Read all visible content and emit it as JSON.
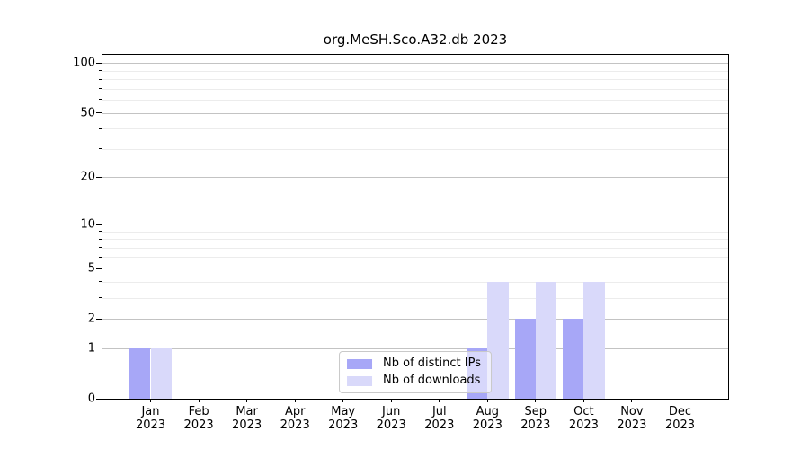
{
  "chart_data": {
    "type": "bar",
    "title": "org.MeSH.Sco.A32.db 2023",
    "categories": [
      {
        "month": "Jan",
        "year": "2023"
      },
      {
        "month": "Feb",
        "year": "2023"
      },
      {
        "month": "Mar",
        "year": "2023"
      },
      {
        "month": "Apr",
        "year": "2023"
      },
      {
        "month": "May",
        "year": "2023"
      },
      {
        "month": "Jun",
        "year": "2023"
      },
      {
        "month": "Jul",
        "year": "2023"
      },
      {
        "month": "Aug",
        "year": "2023"
      },
      {
        "month": "Sep",
        "year": "2023"
      },
      {
        "month": "Oct",
        "year": "2023"
      },
      {
        "month": "Nov",
        "year": "2023"
      },
      {
        "month": "Dec",
        "year": "2023"
      }
    ],
    "series": [
      {
        "name": "Nb of distinct IPs",
        "color": "#a7a7f7",
        "values": [
          1,
          0,
          0,
          0,
          0,
          0,
          0,
          1,
          2,
          2,
          0,
          0
        ]
      },
      {
        "name": "Nb of downloads",
        "color": "#d9d9fa",
        "values": [
          1,
          0,
          0,
          0,
          0,
          0,
          0,
          4,
          4,
          4,
          0,
          0
        ]
      }
    ],
    "y_axis": {
      "scale": "log1p",
      "ylim": [
        0,
        112
      ],
      "major_ticks": [
        0,
        1,
        2,
        5,
        10,
        20,
        50,
        100
      ],
      "major_gridlines": [
        1,
        2,
        5,
        10,
        20,
        50,
        100
      ],
      "minor_gridlines": [
        3,
        4,
        6,
        7,
        8,
        9,
        30,
        40,
        60,
        70,
        80,
        90
      ]
    },
    "x_axis": {
      "tick_count": 12
    },
    "legend": {
      "position": "lower center"
    },
    "grid": "both",
    "colors": {
      "major_grid": "#c3c3c3",
      "minor_grid": "#ececec",
      "spine": "#000000",
      "text": "#000000",
      "background": "#ffffff"
    }
  }
}
